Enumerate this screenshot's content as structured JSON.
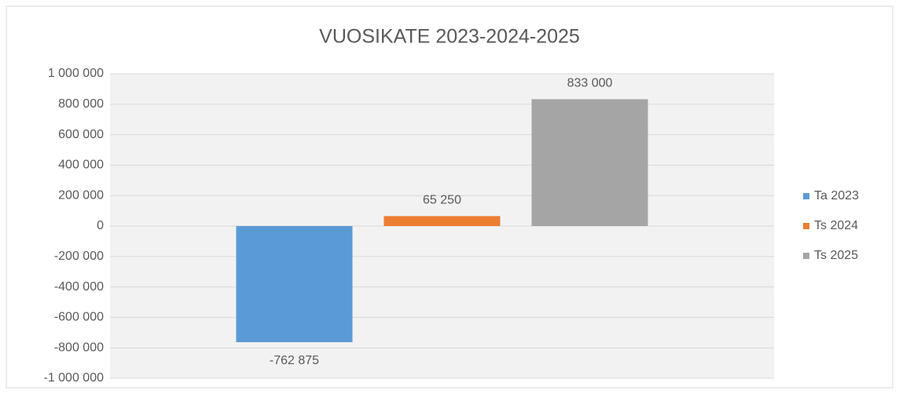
{
  "chart_data": {
    "type": "bar",
    "title": "VUOSIKATE 2023-2024-2025",
    "series": [
      {
        "name": "Ta 2023",
        "color": "#5b9bd5",
        "values": [
          -762875
        ],
        "value_labels": [
          "-762 875"
        ]
      },
      {
        "name": "Ts 2024",
        "color": "#ed7d31",
        "values": [
          65250
        ],
        "value_labels": [
          "65 250"
        ]
      },
      {
        "name": "Ts 2025",
        "color": "#a5a5a5",
        "values": [
          833000
        ],
        "value_labels": [
          "833 000"
        ]
      }
    ],
    "ylim": [
      -1000000,
      1000000
    ],
    "yticks": [
      {
        "value": -1000000,
        "label": "-1 000 000"
      },
      {
        "value": -800000,
        "label": "-800 000"
      },
      {
        "value": -600000,
        "label": "-600 000"
      },
      {
        "value": -400000,
        "label": "-400 000"
      },
      {
        "value": -200000,
        "label": "-200 000"
      },
      0,
      {
        "value": 200000,
        "label": "200 000"
      },
      {
        "value": 400000,
        "label": "400 000"
      },
      {
        "value": 600000,
        "label": "600 000"
      },
      {
        "value": 800000,
        "label": "800 000"
      },
      {
        "value": 1000000,
        "label": "1 000 000"
      }
    ],
    "grid": true,
    "legend": "right"
  }
}
